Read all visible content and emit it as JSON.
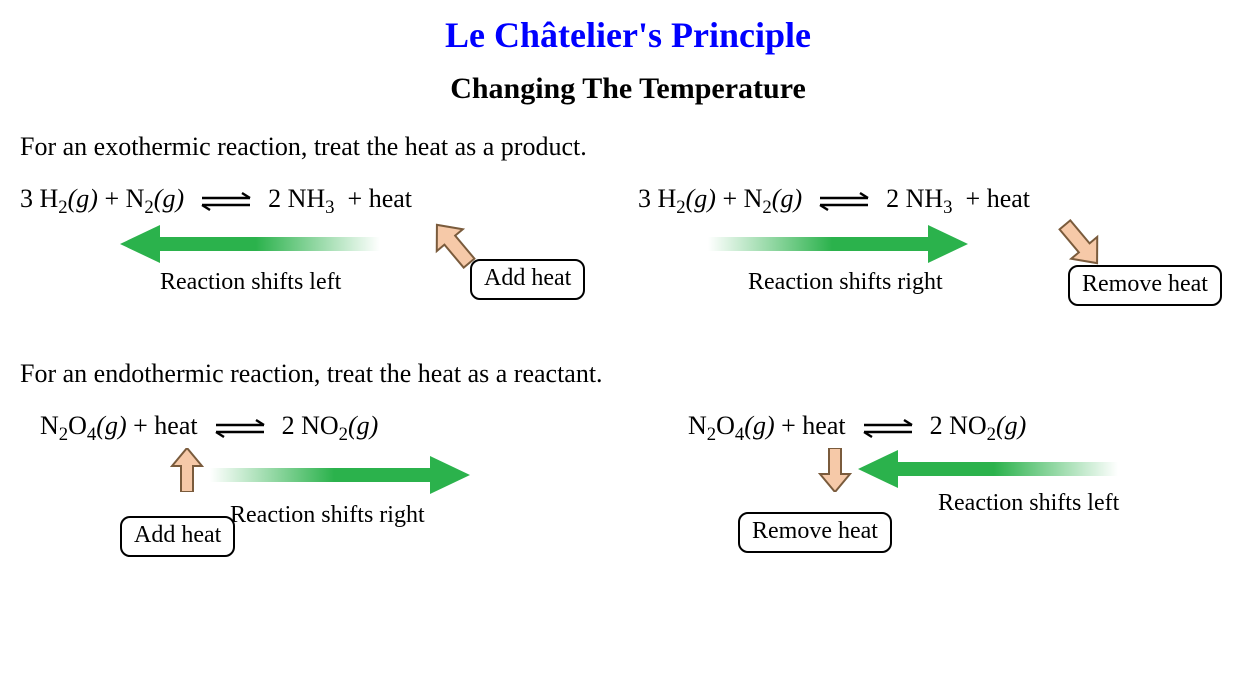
{
  "title": "Le Châtelier's Principle",
  "subtitle": "Changing The Temperature",
  "exo_intro": "For an exothermic reaction, treat the heat as a product.",
  "endo_intro": "For an endothermic reaction, treat the heat as a reactant.",
  "labels": {
    "shift_left": "Reaction shifts left",
    "shift_right": "Reaction shifts right",
    "add_heat": "Add heat",
    "remove_heat": "Remove heat"
  },
  "colors": {
    "title": "#0000ff",
    "arrow_green": "#2bb24c",
    "small_arrow_fill": "#f6c9a8",
    "small_arrow_stroke": "#7a5b3c",
    "text": "#000000",
    "bg": "#ffffff"
  },
  "styling": {
    "title_fontsize": 36,
    "subtitle_fontsize": 30,
    "body_fontsize": 24,
    "eq_fontsize": 26,
    "font_family": "Times New Roman",
    "box_border_radius": 10,
    "big_arrow_length": 250,
    "big_arrow_height": 34,
    "small_arrow_w": 34,
    "small_arrow_h": 44
  },
  "equations": {
    "exo": {
      "left_html": "3 H<sub>2</sub><span class='state'>(g)</span> + N<sub>2</sub><span class='state'>(g)</span>",
      "right_html": "2 NH<sub>3</sub>&nbsp; + heat"
    },
    "endo": {
      "left_html": "N<sub>2</sub>O<sub>4</sub><span class='state'>(g)</span> + heat",
      "right_html": "2 NO<sub>2</sub><span class='state'>(g)</span>"
    }
  }
}
